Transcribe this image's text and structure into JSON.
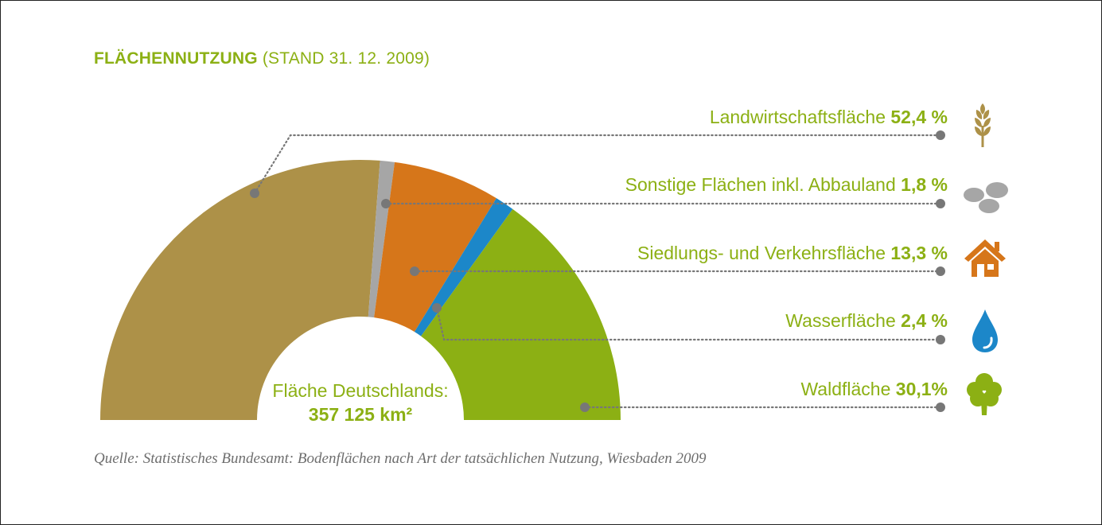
{
  "title": {
    "bold": "FLÄCHENNUTZUNG",
    "rest": "(STAND 31. 12. 2009)"
  },
  "chart_data": {
    "type": "pie",
    "variant": "half-donut",
    "title": "FLÄCHENNUTZUNG (STAND 31. 12. 2009)",
    "center_label": "Fläche Deutschlands:",
    "center_value": "357 125 km²",
    "slices": [
      {
        "name": "Landwirtschaftsfläche",
        "value": 52.4,
        "value_label": "52,4 %",
        "color": "#ad9148",
        "icon": "wheat-icon"
      },
      {
        "name": "Sonstige Flächen inkl. Abbauland",
        "value": 1.8,
        "value_label": "1,8 %",
        "color": "#a6a6a6",
        "icon": "stones-icon"
      },
      {
        "name": "Siedlungs- und Verkehrsfläche",
        "value": 13.3,
        "value_label": "13,3 %",
        "color": "#d6761a",
        "icon": "house-icon"
      },
      {
        "name": "Wasserfläche",
        "value": 2.4,
        "value_label": "2,4 %",
        "color": "#1c87c9",
        "icon": "water-drop-icon"
      },
      {
        "name": "Waldfläche",
        "value": 30.1,
        "value_label": "30,1%",
        "color": "#8cb014",
        "icon": "tree-icon"
      }
    ]
  },
  "source": "Quelle: Statistisches Bundesamt: Bodenflächen nach Art der tatsächlichen Nutzung, Wiesbaden 2009",
  "colors": {
    "accent": "#8cb014",
    "leader": "#777777"
  }
}
